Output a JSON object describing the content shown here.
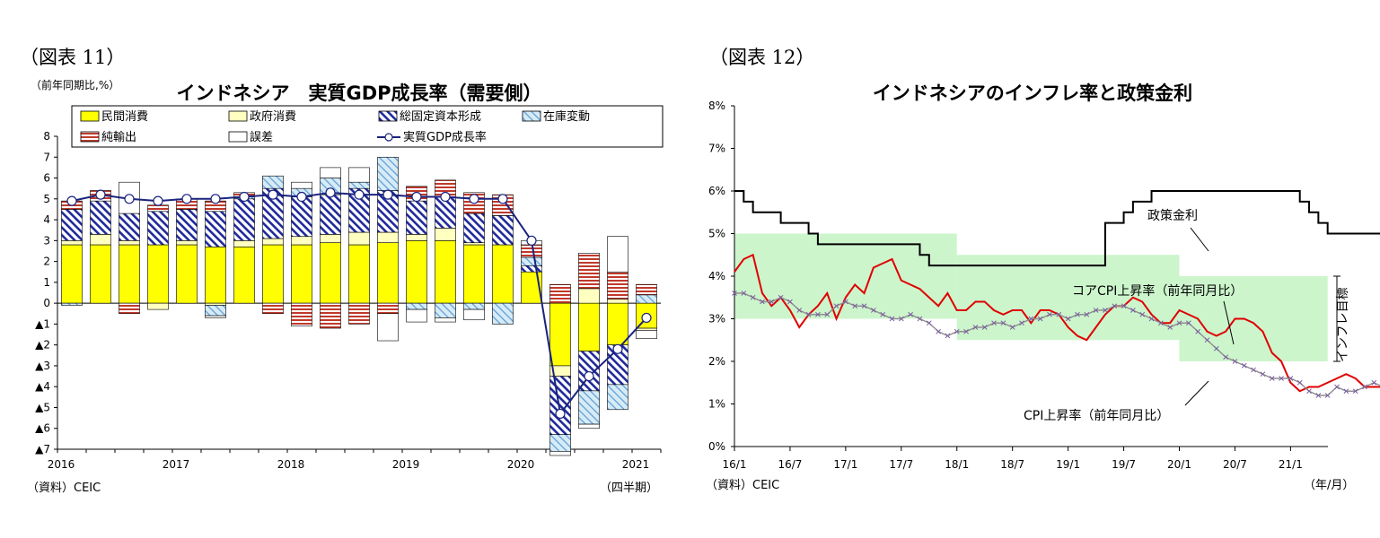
{
  "left": {
    "figure_label": "（図表 11）",
    "unit_label": "（前年同期比,%）",
    "source": "（資料）CEIC",
    "period_label": "（四半期）"
  },
  "right": {
    "figure_label": "（図表 12）",
    "source": "（資料）CEIC",
    "period_label": "（年/月）",
    "annotation_policy": "政策金利",
    "annotation_core": "コアCPI上昇率（前年同月比）",
    "annotation_cpi": "CPI上昇率（前年同月比）",
    "annotation_target": "インフレ目標"
  },
  "chart_data": [
    {
      "type": "bar",
      "stacked": true,
      "title": "インドネシア　実質GDP成長率（需要側）",
      "ylim": [
        -7,
        8
      ],
      "y_ticks": [
        8,
        7,
        6,
        5,
        4,
        3,
        2,
        1,
        0,
        -1,
        -2,
        -3,
        -4,
        -5,
        -6,
        -7
      ],
      "y_tick_labels": [
        "8",
        "7",
        "6",
        "5",
        "4",
        "3",
        "2",
        "1",
        "0",
        "▲1",
        "▲2",
        "▲3",
        "▲4",
        "▲5",
        "▲6",
        "▲7"
      ],
      "x_year_labels": [
        {
          "label": "2016",
          "index": 0
        },
        {
          "label": "2017",
          "index": 4
        },
        {
          "label": "2018",
          "index": 8
        },
        {
          "label": "2019",
          "index": 12
        },
        {
          "label": "2020",
          "index": 16
        },
        {
          "label": "2021",
          "index": 20
        }
      ],
      "categories": [
        "2016Q1",
        "2016Q2",
        "2016Q3",
        "2016Q4",
        "2017Q1",
        "2017Q2",
        "2017Q3",
        "2017Q4",
        "2018Q1",
        "2018Q2",
        "2018Q3",
        "2018Q4",
        "2019Q1",
        "2019Q2",
        "2019Q3",
        "2019Q4",
        "2020Q1",
        "2020Q2",
        "2020Q3",
        "2020Q4",
        "2021Q1"
      ],
      "series": [
        {
          "name": "民間消費",
          "color": "#ffff00",
          "values": [
            2.8,
            2.8,
            2.8,
            2.8,
            2.8,
            2.7,
            2.7,
            2.8,
            2.8,
            2.9,
            2.8,
            2.9,
            3.0,
            3.0,
            2.8,
            2.8,
            1.5,
            -3.0,
            -2.3,
            -2.0,
            -1.2
          ]
        },
        {
          "name": "政府消費",
          "color": "#ffffc0",
          "values": [
            0.2,
            0.5,
            0.2,
            -0.3,
            0.2,
            -0.1,
            0.3,
            0.3,
            0.4,
            0.4,
            0.6,
            0.5,
            0.3,
            0.6,
            0.1,
            0.0,
            0.0,
            -0.5,
            0.7,
            0.2,
            -0.1
          ]
        },
        {
          "name": "総固定資本形成",
          "color": "#1f2a9a",
          "values": [
            1.5,
            1.6,
            1.3,
            1.6,
            1.5,
            1.7,
            2.0,
            2.4,
            1.9,
            1.9,
            2.1,
            2.0,
            1.6,
            1.5,
            1.4,
            1.4,
            0.3,
            -2.8,
            -1.9,
            -1.9,
            0.0
          ]
        },
        {
          "name": "在庫変動",
          "color": "#9dc3e6",
          "values": [
            -0.1,
            0.0,
            0.0,
            0.0,
            0.0,
            -0.5,
            0.1,
            0.6,
            0.4,
            0.8,
            0.3,
            1.6,
            -0.3,
            -0.7,
            -0.3,
            -1.0,
            0.4,
            -0.8,
            -1.6,
            -1.2,
            0.4
          ]
        },
        {
          "name": "純輸出",
          "color": "#c0392b",
          "values": [
            0.4,
            0.5,
            -0.5,
            0.3,
            0.5,
            0.5,
            0.2,
            -0.5,
            -1.1,
            -1.2,
            -1.0,
            -0.5,
            0.7,
            0.8,
            1.0,
            1.0,
            0.6,
            0.9,
            1.7,
            1.3,
            0.5
          ]
        },
        {
          "name": "誤差",
          "color": "#ffffff",
          "values": [
            0.0,
            0.0,
            1.5,
            0.0,
            0.0,
            -0.1,
            0.0,
            0.0,
            0.3,
            0.5,
            0.7,
            -1.3,
            -0.6,
            -0.2,
            -0.5,
            0.0,
            0.2,
            -0.2,
            -0.2,
            1.7,
            -0.4
          ]
        }
      ],
      "line_series": {
        "name": "実質GDP成長率",
        "color": "#1a237e",
        "values": [
          4.9,
          5.2,
          5.0,
          4.9,
          5.0,
          5.0,
          5.1,
          5.2,
          5.1,
          5.3,
          5.2,
          5.2,
          5.1,
          5.1,
          5.0,
          5.0,
          3.0,
          -5.3,
          -3.5,
          -2.2,
          -0.7
        ]
      }
    },
    {
      "type": "line",
      "title": "インドネシアのインフレ率と政策金利",
      "ylim": [
        0,
        8
      ],
      "y_ticks": [
        0,
        1,
        2,
        3,
        4,
        5,
        6,
        7,
        8
      ],
      "y_tick_labels": [
        "0%",
        "1%",
        "2%",
        "3%",
        "4%",
        "5%",
        "6%",
        "7%",
        "8%"
      ],
      "x_ticks": [
        "16/1",
        "16/7",
        "17/1",
        "17/7",
        "18/1",
        "18/7",
        "19/1",
        "19/7",
        "20/1",
        "20/7",
        "21/1"
      ],
      "x_start": "2016-01",
      "inflation_target_bands": [
        {
          "from": "2016-01",
          "to": "2018-01",
          "low": 3,
          "high": 5
        },
        {
          "from": "2018-01",
          "to": "2020-01",
          "low": 2.5,
          "high": 4.5
        },
        {
          "from": "2020-01",
          "to": "2021-05",
          "low": 2,
          "high": 4
        }
      ],
      "series": [
        {
          "name": "政策金利",
          "color": "#000000",
          "step": true,
          "values": [
            6.0,
            5.75,
            5.5,
            5.5,
            5.5,
            5.25,
            5.25,
            5.25,
            5.0,
            4.75,
            4.75,
            4.75,
            4.75,
            4.75,
            4.75,
            4.75,
            4.75,
            4.75,
            4.75,
            4.75,
            4.5,
            4.25,
            4.25,
            4.25,
            4.25,
            4.25,
            4.25,
            4.25,
            4.25,
            4.25,
            4.25,
            4.25,
            4.25,
            4.25,
            4.25,
            4.25,
            4.25,
            4.25,
            4.25,
            4.25,
            5.25,
            5.25,
            5.5,
            5.75,
            5.75,
            6.0,
            6.0,
            6.0,
            6.0,
            6.0,
            6.0,
            6.0,
            6.0,
            6.0,
            6.0,
            6.0,
            6.0,
            6.0,
            6.0,
            6.0,
            6.0,
            5.75,
            5.5,
            5.25,
            5.0,
            5.0,
            5.0,
            5.0,
            5.0,
            5.0,
            5.0,
            4.75,
            4.5,
            4.5,
            4.5,
            4.25,
            4.0,
            4.0,
            4.0,
            4.0,
            4.0,
            4.0,
            4.0,
            3.75,
            3.75,
            3.75,
            3.5,
            3.5,
            3.5,
            3.5,
            3.5,
            3.5,
            3.5
          ]
        },
        {
          "name": "CPI上昇率（前年同月比）",
          "color": "#e00000",
          "values": [
            4.1,
            4.4,
            4.5,
            3.6,
            3.3,
            3.5,
            3.2,
            2.8,
            3.1,
            3.3,
            3.6,
            3.0,
            3.5,
            3.8,
            3.6,
            4.2,
            4.3,
            4.4,
            3.9,
            3.8,
            3.7,
            3.5,
            3.3,
            3.6,
            3.2,
            3.2,
            3.4,
            3.4,
            3.2,
            3.1,
            3.2,
            3.2,
            2.9,
            3.2,
            3.2,
            3.1,
            2.8,
            2.6,
            2.5,
            2.8,
            3.1,
            3.3,
            3.3,
            3.5,
            3.4,
            3.1,
            2.9,
            2.9,
            3.2,
            3.1,
            3.0,
            2.7,
            2.6,
            2.7,
            3.0,
            3.0,
            2.9,
            2.7,
            2.2,
            2.0,
            1.5,
            1.3,
            1.4,
            1.4,
            1.5,
            1.6,
            1.7,
            1.6,
            1.4,
            1.4,
            1.4,
            1.6,
            1.7,
            1.4,
            1.3,
            1.4,
            1.6,
            1.4,
            1.6,
            1.7,
            1.9,
            2.2,
            1.7,
            1.6,
            1.7,
            1.4,
            1.4,
            1.4,
            1.5,
            1.6,
            1.5,
            1.6,
            1.7
          ]
        },
        {
          "name": "コアCPI上昇率（前年同月比）",
          "color": "#8e8e8e",
          "values": [
            3.6,
            3.6,
            3.5,
            3.4,
            3.4,
            3.5,
            3.4,
            3.2,
            3.1,
            3.1,
            3.1,
            3.3,
            3.4,
            3.3,
            3.3,
            3.2,
            3.1,
            3.0,
            3.0,
            3.1,
            3.0,
            2.9,
            2.7,
            2.6,
            2.7,
            2.7,
            2.8,
            2.8,
            2.9,
            2.9,
            2.8,
            2.9,
            3.0,
            3.0,
            3.1,
            3.1,
            3.0,
            3.1,
            3.1,
            3.2,
            3.2,
            3.3,
            3.3,
            3.2,
            3.1,
            3.0,
            2.9,
            2.8,
            2.9,
            2.9,
            2.7,
            2.5,
            2.3,
            2.1,
            2.0,
            1.9,
            1.8,
            1.7,
            1.6,
            1.6,
            1.6,
            1.5,
            1.3,
            1.2,
            1.2,
            1.4,
            1.3,
            1.3,
            1.4,
            1.5,
            1.4,
            1.4,
            1.4,
            1.5,
            1.5,
            1.5,
            1.6,
            1.6,
            1.6,
            1.6,
            1.5,
            1.6,
            1.7,
            1.6,
            1.5,
            1.6,
            1.7,
            1.7,
            1.6,
            1.7,
            1.7,
            1.8,
            1.7
          ]
        }
      ]
    }
  ]
}
